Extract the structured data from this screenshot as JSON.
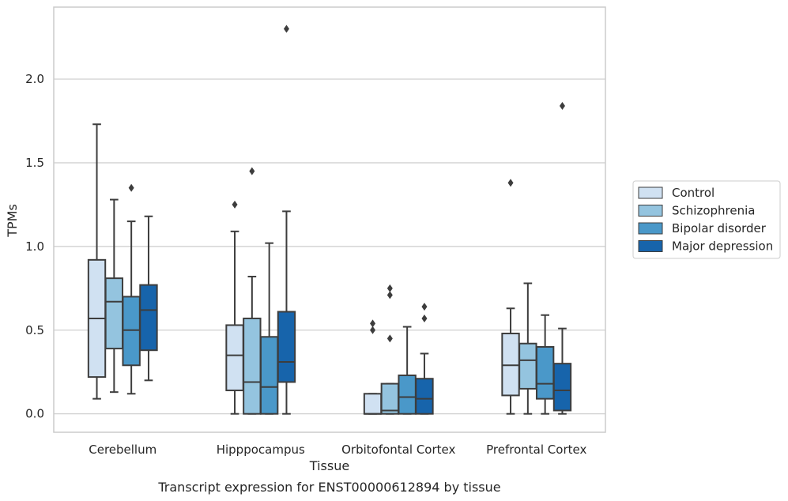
{
  "chart_data": {
    "type": "box",
    "xlabel": "Tissue",
    "ylabel": "TPMs",
    "caption": "Transcript expression for ENST00000612894 by tissue",
    "ylim": [
      -0.11,
      2.43
    ],
    "yticks": [
      0.0,
      0.5,
      1.0,
      1.5,
      2.0
    ],
    "ytick_labels": [
      "0.0",
      "0.5",
      "1.0",
      "1.5",
      "2.0"
    ],
    "grid": "horizontal",
    "legend_position": "right",
    "categories": [
      "Cerebellum",
      "Hipppocampus",
      "Orbitofontal Cortex",
      "Prefrontal Cortex"
    ],
    "series": [
      {
        "name": "Control",
        "color": "#d0e1f2",
        "boxes": [
          {
            "whislo": 0.09,
            "q1": 0.22,
            "med": 0.57,
            "q3": 0.92,
            "whishi": 1.73,
            "fliers": []
          },
          {
            "whislo": 0.0,
            "q1": 0.14,
            "med": 0.35,
            "q3": 0.53,
            "whishi": 1.09,
            "fliers": [
              1.25
            ]
          },
          {
            "whislo": 0.0,
            "q1": 0.0,
            "med": 0.0,
            "q3": 0.12,
            "whishi": 0.12,
            "fliers": [
              0.5,
              0.54
            ]
          },
          {
            "whislo": 0.0,
            "q1": 0.11,
            "med": 0.29,
            "q3": 0.48,
            "whishi": 0.63,
            "fliers": [
              1.38
            ]
          }
        ]
      },
      {
        "name": "Schizophrenia",
        "color": "#94c4df",
        "boxes": [
          {
            "whislo": 0.13,
            "q1": 0.39,
            "med": 0.67,
            "q3": 0.81,
            "whishi": 1.28,
            "fliers": []
          },
          {
            "whislo": 0.0,
            "q1": 0.0,
            "med": 0.19,
            "q3": 0.57,
            "whishi": 0.82,
            "fliers": [
              1.45
            ]
          },
          {
            "whislo": 0.0,
            "q1": 0.0,
            "med": 0.02,
            "q3": 0.18,
            "whishi": 0.18,
            "fliers": [
              0.45,
              0.71,
              0.75
            ]
          },
          {
            "whislo": 0.0,
            "q1": 0.15,
            "med": 0.32,
            "q3": 0.42,
            "whishi": 0.78,
            "fliers": []
          }
        ]
      },
      {
        "name": "Bipolar disorder",
        "color": "#4a98c9",
        "boxes": [
          {
            "whislo": 0.12,
            "q1": 0.29,
            "med": 0.5,
            "q3": 0.7,
            "whishi": 1.15,
            "fliers": [
              1.35
            ]
          },
          {
            "whislo": 0.0,
            "q1": 0.0,
            "med": 0.16,
            "q3": 0.46,
            "whishi": 1.02,
            "fliers": []
          },
          {
            "whislo": 0.0,
            "q1": 0.0,
            "med": 0.1,
            "q3": 0.23,
            "whishi": 0.52,
            "fliers": []
          },
          {
            "whislo": 0.0,
            "q1": 0.09,
            "med": 0.18,
            "q3": 0.4,
            "whishi": 0.59,
            "fliers": []
          }
        ]
      },
      {
        "name": "Major depression",
        "color": "#1764ab",
        "boxes": [
          {
            "whislo": 0.2,
            "q1": 0.38,
            "med": 0.62,
            "q3": 0.77,
            "whishi": 1.18,
            "fliers": []
          },
          {
            "whislo": 0.0,
            "q1": 0.19,
            "med": 0.31,
            "q3": 0.61,
            "whishi": 1.21,
            "fliers": [
              2.3
            ]
          },
          {
            "whislo": 0.0,
            "q1": 0.0,
            "med": 0.09,
            "q3": 0.21,
            "whishi": 0.36,
            "fliers": [
              0.57,
              0.64
            ]
          },
          {
            "whislo": 0.0,
            "q1": 0.02,
            "med": 0.14,
            "q3": 0.3,
            "whishi": 0.51,
            "fliers": [
              1.84
            ]
          }
        ]
      }
    ]
  },
  "colors": {
    "line": "#3d3d3d",
    "grid": "#cccccc",
    "frame": "#cccccc",
    "background": "#ffffff"
  }
}
